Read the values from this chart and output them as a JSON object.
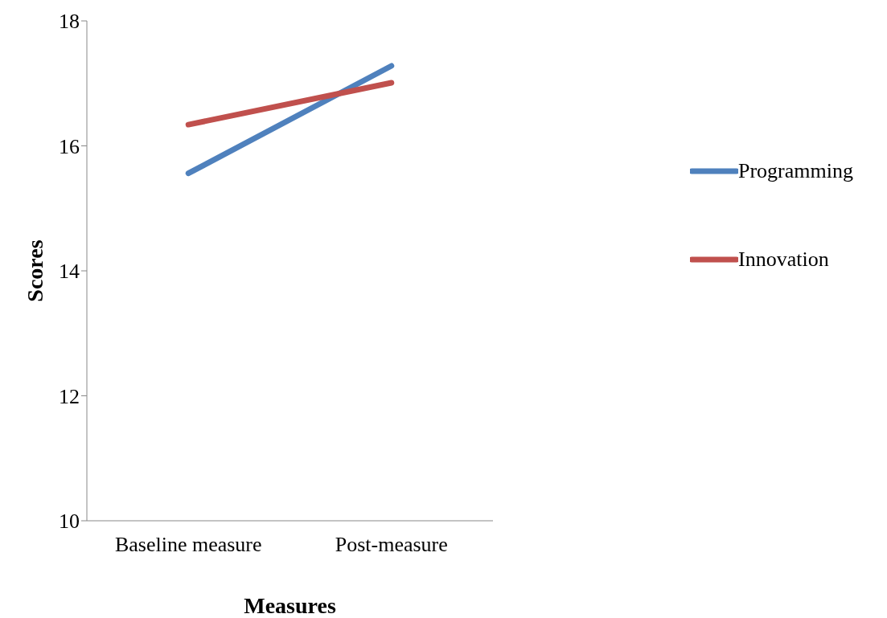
{
  "chart_data": {
    "type": "line",
    "xlabel": "Measures",
    "ylabel": "Scores",
    "categories": [
      "Baseline measure",
      "Post-measure"
    ],
    "series": [
      {
        "name": "Programming",
        "color": "#4f81bd",
        "values": [
          15.56,
          17.28
        ]
      },
      {
        "name": "Innovation",
        "color": "#c0504d",
        "values": [
          16.34,
          17.01
        ]
      }
    ],
    "ylim": [
      10,
      18
    ],
    "yticks": [
      10,
      12,
      14,
      16,
      18
    ],
    "grid": false,
    "legend": "right",
    "marker": "none",
    "line_style": "solid"
  }
}
